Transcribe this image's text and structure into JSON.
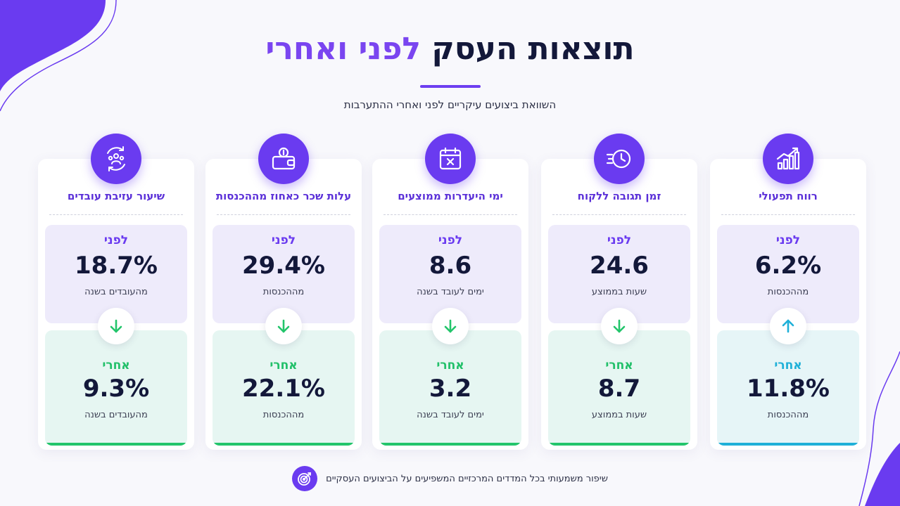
{
  "header": {
    "title_main": "תוצאות העסק",
    "title_accent": "לפני ואחרי",
    "subtitle": "השוואת ביצועים עיקריים לפני ואחרי ההתערבות"
  },
  "colors": {
    "accent": "#6a3bf0",
    "before_bg": "#eeebfb",
    "after_bg": "#e6f6f2",
    "down_green": "#23c56b",
    "up_cyan": "#1fb0d8"
  },
  "cards": [
    {
      "title": "רווח תפעולי",
      "icon": "bar-chart-growth-icon",
      "before_label": "לפני",
      "before_value": "6.2%",
      "before_unit": "מההכנסות",
      "direction": "up",
      "after_label": "אחרי",
      "after_value": "11.8%",
      "after_unit": "מההכנסות"
    },
    {
      "title": "זמן תגובה ללקוח",
      "icon": "fast-clock-icon",
      "before_label": "לפני",
      "before_value": "24.6",
      "before_unit": "שעות בממוצע",
      "direction": "down",
      "after_label": "אחרי",
      "after_value": "8.7",
      "after_unit": "שעות בממוצע"
    },
    {
      "title": "ימי היעדרות ממוצעים",
      "icon": "calendar-x-icon",
      "before_label": "לפני",
      "before_value": "8.6",
      "before_unit": "ימים לעובד בשנה",
      "direction": "down",
      "after_label": "אחרי",
      "after_value": "3.2",
      "after_unit": "ימים לעובד בשנה"
    },
    {
      "title": "עלות שכר כאחוז מההכנסות",
      "icon": "wallet-coin-icon",
      "before_label": "לפני",
      "before_value": "29.4%",
      "before_unit": "מההכנסות",
      "direction": "down",
      "after_label": "אחרי",
      "after_value": "22.1%",
      "after_unit": "מההכנסות"
    },
    {
      "title": "שיעור עזיבת עובדים",
      "icon": "team-cycle-icon",
      "before_label": "לפני",
      "before_value": "18.7%",
      "before_unit": "מהעובדים בשנה",
      "direction": "down",
      "after_label": "אחרי",
      "after_value": "9.3%",
      "after_unit": "מהעובדים בשנה"
    }
  ],
  "footer": {
    "icon": "target-icon",
    "text": "שיפור משמעותי בכל המדדים המרכזיים המשפיעים על הביצועים העסקיים"
  }
}
